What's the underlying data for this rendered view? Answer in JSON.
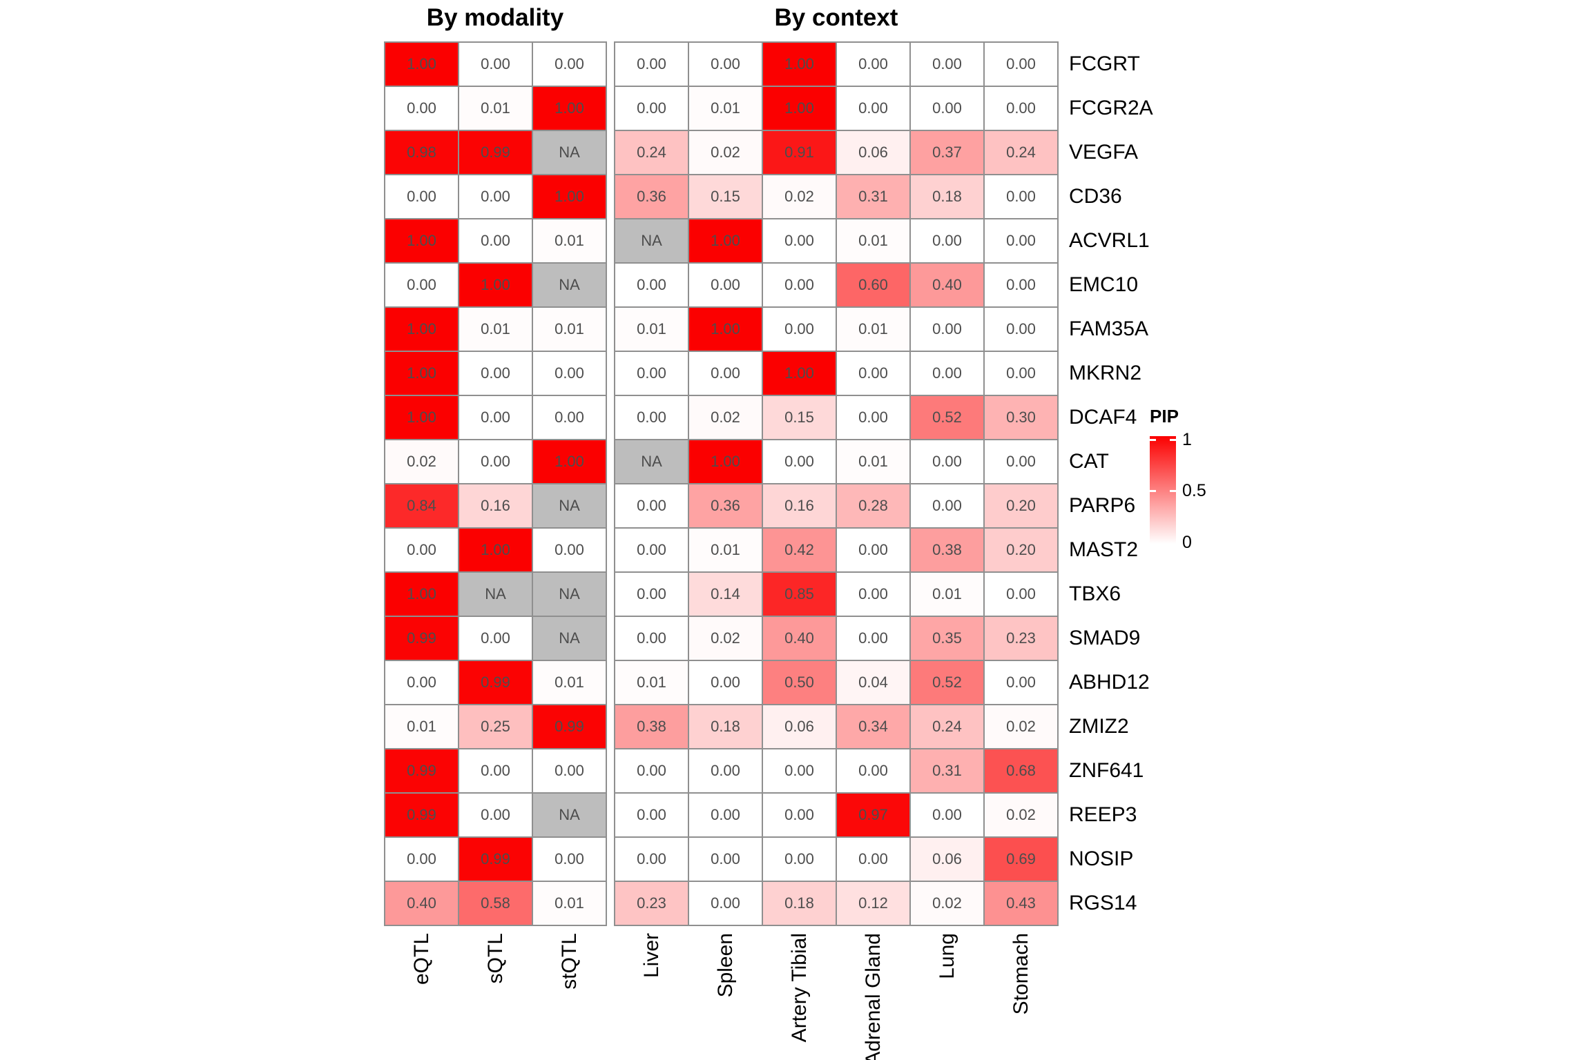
{
  "titles": {
    "left": "By modality",
    "right": "By context"
  },
  "legend": {
    "title": "PIP",
    "ticks": [
      "1",
      "0.5",
      "0"
    ],
    "high_color": "#fb0000",
    "low_color": "#ffffff",
    "na_color": "#bdbdbd"
  },
  "chart_data": {
    "type": "heatmap",
    "value_label": "PIP",
    "value_range": [
      0,
      1
    ],
    "na_label": "NA",
    "grid": "on",
    "legend_position": "right",
    "genes": [
      "FCGRT",
      "FCGR2A",
      "VEGFA",
      "CD36",
      "ACVRL1",
      "EMC10",
      "FAM35A",
      "MKRN2",
      "DCAF4",
      "CAT",
      "PARP6",
      "MAST2",
      "TBX6",
      "SMAD9",
      "ABHD12",
      "ZMIZ2",
      "ZNF641",
      "REEP3",
      "NOSIP",
      "RGS14"
    ],
    "panels": [
      {
        "name": "By modality",
        "columns": [
          "eQTL",
          "sQTL",
          "stQTL"
        ],
        "rows": [
          [
            "1.00",
            "0.00",
            "0.00"
          ],
          [
            "0.00",
            "0.01",
            "1.00"
          ],
          [
            "0.98",
            "0.99",
            "NA"
          ],
          [
            "0.00",
            "0.00",
            "1.00"
          ],
          [
            "1.00",
            "0.00",
            "0.01"
          ],
          [
            "0.00",
            "1.00",
            "NA"
          ],
          [
            "1.00",
            "0.01",
            "0.01"
          ],
          [
            "1.00",
            "0.00",
            "0.00"
          ],
          [
            "1.00",
            "0.00",
            "0.00"
          ],
          [
            "0.02",
            "0.00",
            "1.00"
          ],
          [
            "0.84",
            "0.16",
            "NA"
          ],
          [
            "0.00",
            "1.00",
            "0.00"
          ],
          [
            "1.00",
            "NA",
            "NA"
          ],
          [
            "0.99",
            "0.00",
            "NA"
          ],
          [
            "0.00",
            "0.99",
            "0.01"
          ],
          [
            "0.01",
            "0.25",
            "0.99"
          ],
          [
            "0.99",
            "0.00",
            "0.00"
          ],
          [
            "0.99",
            "0.00",
            "NA"
          ],
          [
            "0.00",
            "0.99",
            "0.00"
          ],
          [
            "0.40",
            "0.58",
            "0.01"
          ]
        ]
      },
      {
        "name": "By context",
        "columns": [
          "Liver",
          "Spleen",
          "Artery Tibial",
          "Adrenal Gland",
          "Lung",
          "Stomach"
        ],
        "rows": [
          [
            "0.00",
            "0.00",
            "1.00",
            "0.00",
            "0.00",
            "0.00"
          ],
          [
            "0.00",
            "0.01",
            "1.00",
            "0.00",
            "0.00",
            "0.00"
          ],
          [
            "0.24",
            "0.02",
            "0.91",
            "0.06",
            "0.37",
            "0.24"
          ],
          [
            "0.36",
            "0.15",
            "0.02",
            "0.31",
            "0.18",
            "0.00"
          ],
          [
            "NA",
            "1.00",
            "0.00",
            "0.01",
            "0.00",
            "0.00"
          ],
          [
            "0.00",
            "0.00",
            "0.00",
            "0.60",
            "0.40",
            "0.00"
          ],
          [
            "0.01",
            "1.00",
            "0.00",
            "0.01",
            "0.00",
            "0.00"
          ],
          [
            "0.00",
            "0.00",
            "1.00",
            "0.00",
            "0.00",
            "0.00"
          ],
          [
            "0.00",
            "0.02",
            "0.15",
            "0.00",
            "0.52",
            "0.30"
          ],
          [
            "NA",
            "1.00",
            "0.00",
            "0.01",
            "0.00",
            "0.00"
          ],
          [
            "0.00",
            "0.36",
            "0.16",
            "0.28",
            "0.00",
            "0.20"
          ],
          [
            "0.00",
            "0.01",
            "0.42",
            "0.00",
            "0.38",
            "0.20"
          ],
          [
            "0.00",
            "0.14",
            "0.85",
            "0.00",
            "0.01",
            "0.00"
          ],
          [
            "0.00",
            "0.02",
            "0.40",
            "0.00",
            "0.35",
            "0.23"
          ],
          [
            "0.01",
            "0.00",
            "0.50",
            "0.04",
            "0.52",
            "0.00"
          ],
          [
            "0.38",
            "0.18",
            "0.06",
            "0.34",
            "0.24",
            "0.02"
          ],
          [
            "0.00",
            "0.00",
            "0.00",
            "0.00",
            "0.31",
            "0.68"
          ],
          [
            "0.00",
            "0.00",
            "0.00",
            "0.97",
            "0.00",
            "0.02"
          ],
          [
            "0.00",
            "0.00",
            "0.00",
            "0.00",
            "0.06",
            "0.69"
          ],
          [
            "0.23",
            "0.00",
            "0.18",
            "0.12",
            "0.02",
            "0.43"
          ]
        ]
      }
    ]
  }
}
